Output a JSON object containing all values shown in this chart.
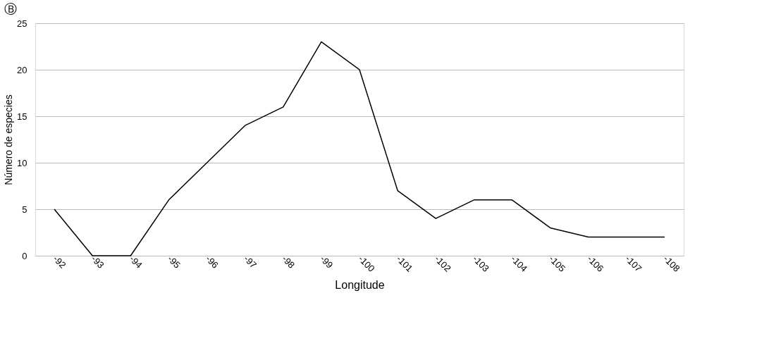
{
  "chart_data": {
    "type": "line",
    "title": "Ⓑ",
    "xlabel": "Longitude",
    "ylabel": "Número de especies",
    "categories": [
      "-92",
      "-93",
      "-94",
      "-95",
      "-96",
      "-97",
      "-98",
      "-99",
      "-100",
      "-101",
      "-102",
      "-103",
      "-104",
      "-105",
      "-106",
      "-107",
      "-108"
    ],
    "series": [
      {
        "color": "#000000",
        "values": [
          5,
          0,
          0,
          6,
          10,
          14,
          16,
          23,
          20,
          7,
          4,
          6,
          6,
          3,
          2,
          2,
          2
        ]
      }
    ],
    "ylim": [
      0,
      25
    ],
    "yticks": [
      0,
      5,
      10,
      15,
      20,
      25
    ],
    "grid": "y",
    "marker": "none",
    "line_style": "solid"
  }
}
